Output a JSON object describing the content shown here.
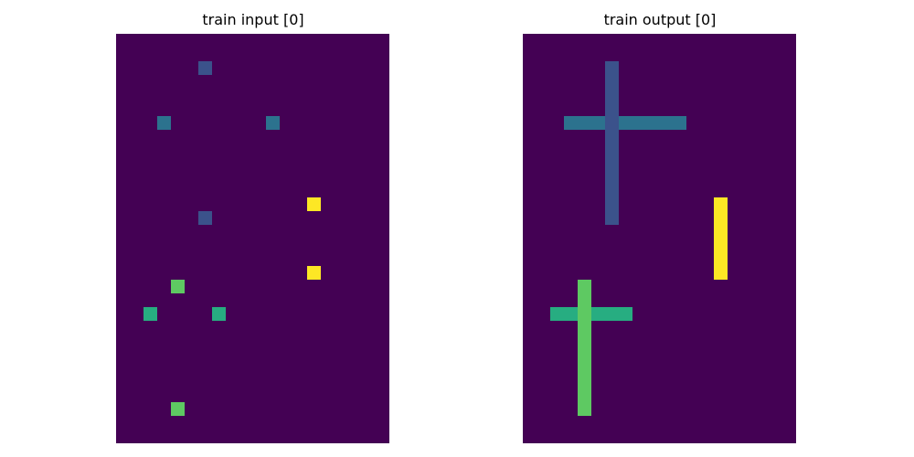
{
  "palette": {
    "0": "#440154",
    "1": "#3b528b",
    "2": "#2c728e",
    "3": "#27ad81",
    "4": "#5ec962",
    "5": "#fde725"
  },
  "panels": [
    {
      "title": "train input [0]",
      "grid": [
        [
          0,
          0,
          0,
          0,
          0,
          0,
          0,
          0,
          0,
          0,
          0,
          0,
          0,
          0,
          0,
          0,
          0,
          0,
          0,
          0
        ],
        [
          0,
          0,
          0,
          0,
          0,
          0,
          0,
          0,
          0,
          0,
          0,
          0,
          0,
          0,
          0,
          0,
          0,
          0,
          0,
          0
        ],
        [
          0,
          0,
          0,
          0,
          0,
          0,
          1,
          0,
          0,
          0,
          0,
          0,
          0,
          0,
          0,
          0,
          0,
          0,
          0,
          0
        ],
        [
          0,
          0,
          0,
          0,
          0,
          0,
          0,
          0,
          0,
          0,
          0,
          0,
          0,
          0,
          0,
          0,
          0,
          0,
          0,
          0
        ],
        [
          0,
          0,
          0,
          0,
          0,
          0,
          0,
          0,
          0,
          0,
          0,
          0,
          0,
          0,
          0,
          0,
          0,
          0,
          0,
          0
        ],
        [
          0,
          0,
          0,
          0,
          0,
          0,
          0,
          0,
          0,
          0,
          0,
          0,
          0,
          0,
          0,
          0,
          0,
          0,
          0,
          0
        ],
        [
          0,
          0,
          0,
          2,
          0,
          0,
          0,
          0,
          0,
          0,
          0,
          2,
          0,
          0,
          0,
          0,
          0,
          0,
          0,
          0
        ],
        [
          0,
          0,
          0,
          0,
          0,
          0,
          0,
          0,
          0,
          0,
          0,
          0,
          0,
          0,
          0,
          0,
          0,
          0,
          0,
          0
        ],
        [
          0,
          0,
          0,
          0,
          0,
          0,
          0,
          0,
          0,
          0,
          0,
          0,
          0,
          0,
          0,
          0,
          0,
          0,
          0,
          0
        ],
        [
          0,
          0,
          0,
          0,
          0,
          0,
          0,
          0,
          0,
          0,
          0,
          0,
          0,
          0,
          0,
          0,
          0,
          0,
          0,
          0
        ],
        [
          0,
          0,
          0,
          0,
          0,
          0,
          0,
          0,
          0,
          0,
          0,
          0,
          0,
          0,
          0,
          0,
          0,
          0,
          0,
          0
        ],
        [
          0,
          0,
          0,
          0,
          0,
          0,
          0,
          0,
          0,
          0,
          0,
          0,
          0,
          0,
          0,
          0,
          0,
          0,
          0,
          0
        ],
        [
          0,
          0,
          0,
          0,
          0,
          0,
          0,
          0,
          0,
          0,
          0,
          0,
          0,
          0,
          5,
          0,
          0,
          0,
          0,
          0
        ],
        [
          0,
          0,
          0,
          0,
          0,
          0,
          1,
          0,
          0,
          0,
          0,
          0,
          0,
          0,
          0,
          0,
          0,
          0,
          0,
          0
        ],
        [
          0,
          0,
          0,
          0,
          0,
          0,
          0,
          0,
          0,
          0,
          0,
          0,
          0,
          0,
          0,
          0,
          0,
          0,
          0,
          0
        ],
        [
          0,
          0,
          0,
          0,
          0,
          0,
          0,
          0,
          0,
          0,
          0,
          0,
          0,
          0,
          0,
          0,
          0,
          0,
          0,
          0
        ],
        [
          0,
          0,
          0,
          0,
          0,
          0,
          0,
          0,
          0,
          0,
          0,
          0,
          0,
          0,
          0,
          0,
          0,
          0,
          0,
          0
        ],
        [
          0,
          0,
          0,
          0,
          0,
          0,
          0,
          0,
          0,
          0,
          0,
          0,
          0,
          0,
          5,
          0,
          0,
          0,
          0,
          0
        ],
        [
          0,
          0,
          0,
          0,
          4,
          0,
          0,
          0,
          0,
          0,
          0,
          0,
          0,
          0,
          0,
          0,
          0,
          0,
          0,
          0
        ],
        [
          0,
          0,
          0,
          0,
          0,
          0,
          0,
          0,
          0,
          0,
          0,
          0,
          0,
          0,
          0,
          0,
          0,
          0,
          0,
          0
        ],
        [
          0,
          0,
          3,
          0,
          0,
          0,
          0,
          3,
          0,
          0,
          0,
          0,
          0,
          0,
          0,
          0,
          0,
          0,
          0,
          0
        ],
        [
          0,
          0,
          0,
          0,
          0,
          0,
          0,
          0,
          0,
          0,
          0,
          0,
          0,
          0,
          0,
          0,
          0,
          0,
          0,
          0
        ],
        [
          0,
          0,
          0,
          0,
          0,
          0,
          0,
          0,
          0,
          0,
          0,
          0,
          0,
          0,
          0,
          0,
          0,
          0,
          0,
          0
        ],
        [
          0,
          0,
          0,
          0,
          0,
          0,
          0,
          0,
          0,
          0,
          0,
          0,
          0,
          0,
          0,
          0,
          0,
          0,
          0,
          0
        ],
        [
          0,
          0,
          0,
          0,
          0,
          0,
          0,
          0,
          0,
          0,
          0,
          0,
          0,
          0,
          0,
          0,
          0,
          0,
          0,
          0
        ],
        [
          0,
          0,
          0,
          0,
          0,
          0,
          0,
          0,
          0,
          0,
          0,
          0,
          0,
          0,
          0,
          0,
          0,
          0,
          0,
          0
        ],
        [
          0,
          0,
          0,
          0,
          0,
          0,
          0,
          0,
          0,
          0,
          0,
          0,
          0,
          0,
          0,
          0,
          0,
          0,
          0,
          0
        ],
        [
          0,
          0,
          0,
          0,
          4,
          0,
          0,
          0,
          0,
          0,
          0,
          0,
          0,
          0,
          0,
          0,
          0,
          0,
          0,
          0
        ],
        [
          0,
          0,
          0,
          0,
          0,
          0,
          0,
          0,
          0,
          0,
          0,
          0,
          0,
          0,
          0,
          0,
          0,
          0,
          0,
          0
        ],
        [
          0,
          0,
          0,
          0,
          0,
          0,
          0,
          0,
          0,
          0,
          0,
          0,
          0,
          0,
          0,
          0,
          0,
          0,
          0,
          0
        ]
      ]
    },
    {
      "title": "train output [0]",
      "grid": [
        [
          0,
          0,
          0,
          0,
          0,
          0,
          0,
          0,
          0,
          0,
          0,
          0,
          0,
          0,
          0,
          0,
          0,
          0,
          0,
          0
        ],
        [
          0,
          0,
          0,
          0,
          0,
          0,
          0,
          0,
          0,
          0,
          0,
          0,
          0,
          0,
          0,
          0,
          0,
          0,
          0,
          0
        ],
        [
          0,
          0,
          0,
          0,
          0,
          0,
          1,
          0,
          0,
          0,
          0,
          0,
          0,
          0,
          0,
          0,
          0,
          0,
          0,
          0
        ],
        [
          0,
          0,
          0,
          0,
          0,
          0,
          1,
          0,
          0,
          0,
          0,
          0,
          0,
          0,
          0,
          0,
          0,
          0,
          0,
          0
        ],
        [
          0,
          0,
          0,
          0,
          0,
          0,
          1,
          0,
          0,
          0,
          0,
          0,
          0,
          0,
          0,
          0,
          0,
          0,
          0,
          0
        ],
        [
          0,
          0,
          0,
          0,
          0,
          0,
          1,
          0,
          0,
          0,
          0,
          0,
          0,
          0,
          0,
          0,
          0,
          0,
          0,
          0
        ],
        [
          0,
          0,
          0,
          2,
          2,
          2,
          1,
          2,
          2,
          2,
          2,
          2,
          0,
          0,
          0,
          0,
          0,
          0,
          0,
          0
        ],
        [
          0,
          0,
          0,
          0,
          0,
          0,
          1,
          0,
          0,
          0,
          0,
          0,
          0,
          0,
          0,
          0,
          0,
          0,
          0,
          0
        ],
        [
          0,
          0,
          0,
          0,
          0,
          0,
          1,
          0,
          0,
          0,
          0,
          0,
          0,
          0,
          0,
          0,
          0,
          0,
          0,
          0
        ],
        [
          0,
          0,
          0,
          0,
          0,
          0,
          1,
          0,
          0,
          0,
          0,
          0,
          0,
          0,
          0,
          0,
          0,
          0,
          0,
          0
        ],
        [
          0,
          0,
          0,
          0,
          0,
          0,
          1,
          0,
          0,
          0,
          0,
          0,
          0,
          0,
          0,
          0,
          0,
          0,
          0,
          0
        ],
        [
          0,
          0,
          0,
          0,
          0,
          0,
          1,
          0,
          0,
          0,
          0,
          0,
          0,
          0,
          0,
          0,
          0,
          0,
          0,
          0
        ],
        [
          0,
          0,
          0,
          0,
          0,
          0,
          1,
          0,
          0,
          0,
          0,
          0,
          0,
          0,
          5,
          0,
          0,
          0,
          0,
          0
        ],
        [
          0,
          0,
          0,
          0,
          0,
          0,
          1,
          0,
          0,
          0,
          0,
          0,
          0,
          0,
          5,
          0,
          0,
          0,
          0,
          0
        ],
        [
          0,
          0,
          0,
          0,
          0,
          0,
          0,
          0,
          0,
          0,
          0,
          0,
          0,
          0,
          5,
          0,
          0,
          0,
          0,
          0
        ],
        [
          0,
          0,
          0,
          0,
          0,
          0,
          0,
          0,
          0,
          0,
          0,
          0,
          0,
          0,
          5,
          0,
          0,
          0,
          0,
          0
        ],
        [
          0,
          0,
          0,
          0,
          0,
          0,
          0,
          0,
          0,
          0,
          0,
          0,
          0,
          0,
          5,
          0,
          0,
          0,
          0,
          0
        ],
        [
          0,
          0,
          0,
          0,
          0,
          0,
          0,
          0,
          0,
          0,
          0,
          0,
          0,
          0,
          5,
          0,
          0,
          0,
          0,
          0
        ],
        [
          0,
          0,
          0,
          0,
          4,
          0,
          0,
          0,
          0,
          0,
          0,
          0,
          0,
          0,
          0,
          0,
          0,
          0,
          0,
          0
        ],
        [
          0,
          0,
          0,
          0,
          4,
          0,
          0,
          0,
          0,
          0,
          0,
          0,
          0,
          0,
          0,
          0,
          0,
          0,
          0,
          0
        ],
        [
          0,
          0,
          3,
          3,
          4,
          3,
          3,
          3,
          0,
          0,
          0,
          0,
          0,
          0,
          0,
          0,
          0,
          0,
          0,
          0
        ],
        [
          0,
          0,
          0,
          0,
          4,
          0,
          0,
          0,
          0,
          0,
          0,
          0,
          0,
          0,
          0,
          0,
          0,
          0,
          0,
          0
        ],
        [
          0,
          0,
          0,
          0,
          4,
          0,
          0,
          0,
          0,
          0,
          0,
          0,
          0,
          0,
          0,
          0,
          0,
          0,
          0,
          0
        ],
        [
          0,
          0,
          0,
          0,
          4,
          0,
          0,
          0,
          0,
          0,
          0,
          0,
          0,
          0,
          0,
          0,
          0,
          0,
          0,
          0
        ],
        [
          0,
          0,
          0,
          0,
          4,
          0,
          0,
          0,
          0,
          0,
          0,
          0,
          0,
          0,
          0,
          0,
          0,
          0,
          0,
          0
        ],
        [
          0,
          0,
          0,
          0,
          4,
          0,
          0,
          0,
          0,
          0,
          0,
          0,
          0,
          0,
          0,
          0,
          0,
          0,
          0,
          0
        ],
        [
          0,
          0,
          0,
          0,
          4,
          0,
          0,
          0,
          0,
          0,
          0,
          0,
          0,
          0,
          0,
          0,
          0,
          0,
          0,
          0
        ],
        [
          0,
          0,
          0,
          0,
          4,
          0,
          0,
          0,
          0,
          0,
          0,
          0,
          0,
          0,
          0,
          0,
          0,
          0,
          0,
          0
        ],
        [
          0,
          0,
          0,
          0,
          0,
          0,
          0,
          0,
          0,
          0,
          0,
          0,
          0,
          0,
          0,
          0,
          0,
          0,
          0,
          0
        ],
        [
          0,
          0,
          0,
          0,
          0,
          0,
          0,
          0,
          0,
          0,
          0,
          0,
          0,
          0,
          0,
          0,
          0,
          0,
          0,
          0
        ]
      ]
    }
  ]
}
